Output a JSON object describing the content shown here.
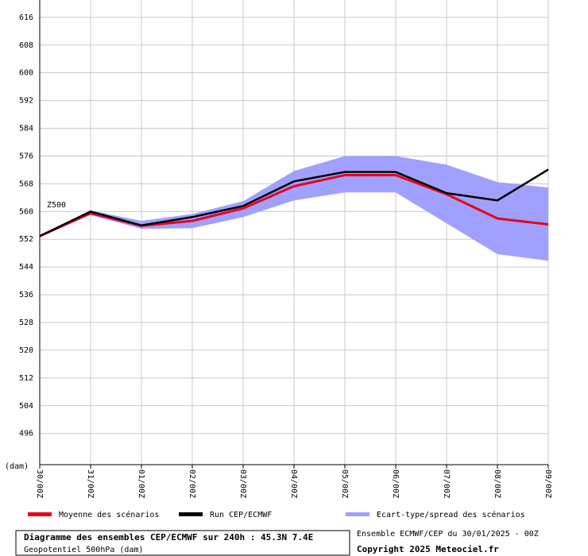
{
  "chart_data": {
    "type": "line",
    "title": "Diagramme des ensembles CEP/ECMWF sur 240h : 45.3N 7.4E",
    "subtitle": "Geopotentiel 500hPa (dam)",
    "run_info": "Ensemble ECMWF/CEP du 30/01/2025 - 00Z",
    "copyright": "Copyright 2025 Meteociel.fr",
    "y_label": "(dam)",
    "annotation": "Z500",
    "categories": [
      "30/00Z",
      "31/00Z",
      "01/00Z",
      "02/00Z",
      "03/00Z",
      "04/00Z",
      "05/00Z",
      "06/00Z",
      "07/00Z",
      "08/00Z",
      "09/00Z"
    ],
    "ylim": [
      487,
      621
    ],
    "yticks": [
      496,
      504,
      512,
      520,
      528,
      536,
      544,
      552,
      560,
      568,
      576,
      584,
      592,
      600,
      608,
      616
    ],
    "grid": true,
    "band": {
      "name": "Ecart-type/spread des scénarios",
      "color": "#a0a0ff",
      "low": [
        552.9,
        559,
        555,
        555.2,
        558.4,
        563.2,
        565.5,
        565.5,
        556.6,
        547.7,
        545.8
      ],
      "high": [
        552.9,
        560.3,
        557.3,
        559.3,
        563,
        571.7,
        576,
        576,
        573.5,
        568.5,
        566.9
      ]
    },
    "series": [
      {
        "name": "Moyenne des scénarios",
        "color": "#e8001c",
        "values": [
          552.9,
          559.5,
          555.9,
          557.3,
          560.9,
          567.3,
          570.5,
          570.5,
          565,
          558,
          556.3
        ]
      },
      {
        "name": "Run CEP/ECMWF",
        "color": "#000000",
        "values": [
          552.9,
          560,
          556,
          558.4,
          561.6,
          568.7,
          571.4,
          571.4,
          565.3,
          563.2,
          572.1
        ]
      }
    ]
  }
}
